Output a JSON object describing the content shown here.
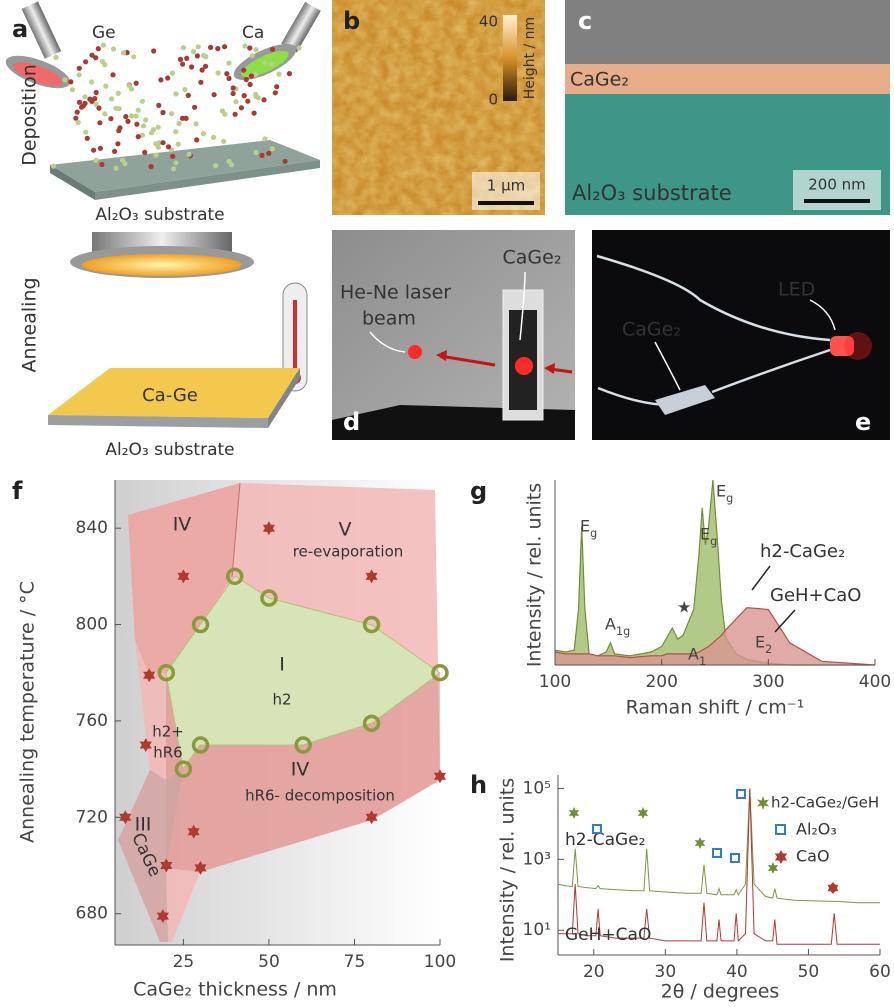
{
  "panels": {
    "a": {
      "label": "a",
      "source_left": "Ge",
      "source_right": "Ca",
      "step_top": "Deposition",
      "substrate_top": "Al₂O₃ substrate",
      "step_bottom": "Annealing",
      "film": "Ca-Ge",
      "substrate_bottom": "Al₂O₃ substrate"
    },
    "b": {
      "label": "b",
      "scale_max": "40",
      "scale_min": "0",
      "scale_title": "Height / nm",
      "scale_bar": "1 µm"
    },
    "c": {
      "label": "c",
      "layer": "CaGe₂",
      "substrate": "Al₂O₃ substrate",
      "scale_bar": "200 nm"
    },
    "d": {
      "label": "d",
      "beam": [
        "He-Ne laser",
        "beam"
      ],
      "sample": "CaGe₂"
    },
    "e": {
      "label": "e",
      "led": "LED",
      "sample": "CaGe₂"
    }
  },
  "chart_data": [
    {
      "type": "scatter",
      "label": "f",
      "x_label": "CaGe₂ thickness / nm",
      "y_label": "Annealing temperature / °C",
      "xlim": [
        5,
        100
      ],
      "ylim": [
        667,
        860
      ],
      "xticks": [
        25,
        50,
        75,
        100
      ],
      "yticks": [
        680,
        720,
        760,
        800,
        840
      ],
      "regions": [
        "IV",
        "V",
        "re-evaporation",
        "I",
        "h2",
        "h2+",
        "hR6",
        "IV",
        "hR6- decomposition",
        "III",
        "CaGe"
      ],
      "series": [
        {
          "marker": "circle",
          "color": "#8a9a3a",
          "x": [
            20,
            30,
            40,
            50,
            80,
            100,
            80,
            60,
            30,
            25
          ],
          "values": [
            780,
            800,
            820,
            811,
            800,
            780,
            759,
            750,
            750,
            740
          ]
        },
        {
          "marker": "star",
          "color": "#b03a30",
          "x": [
            50,
            25,
            80,
            15,
            14,
            8,
            28,
            20,
            30,
            80,
            100,
            19
          ],
          "values": [
            840,
            820,
            820,
            779,
            750,
            720,
            714,
            700,
            699,
            720,
            737,
            679
          ]
        }
      ]
    },
    {
      "type": "area",
      "label": "g",
      "x_label": "Raman shift / cm⁻¹",
      "y_label": "Intensity / rel. units",
      "xlim": [
        100,
        400
      ],
      "ylim": [
        0,
        1
      ],
      "xticks": [
        100,
        200,
        300,
        400
      ],
      "annotations": [
        "Eg",
        "A1g",
        "★",
        "Eg",
        "Eg",
        "E2",
        "A1"
      ],
      "x": [
        100,
        110,
        118,
        122,
        125,
        128,
        132,
        140,
        148,
        152,
        156,
        170,
        190,
        200,
        205,
        210,
        215,
        220,
        230,
        235,
        238,
        241,
        244,
        248,
        252,
        256,
        260,
        270,
        280,
        300,
        320,
        350,
        400
      ],
      "series": [
        {
          "name": "h2-CaGe₂",
          "color": "#6f8f35",
          "values": [
            0.08,
            0.07,
            0.08,
            0.3,
            0.75,
            0.3,
            0.06,
            0.05,
            0.07,
            0.12,
            0.06,
            0.05,
            0.07,
            0.1,
            0.15,
            0.2,
            0.14,
            0.16,
            0.3,
            0.6,
            0.85,
            0.65,
            0.75,
            1.0,
            0.7,
            0.35,
            0.15,
            0.06,
            0.03,
            0.01,
            0,
            0,
            0
          ]
        },
        {
          "name": "GeH+CaO",
          "color": "#b8504a",
          "values": [
            0.07,
            0.06,
            0.06,
            0.06,
            0.06,
            0.06,
            0.06,
            0.05,
            0.05,
            0.05,
            0.05,
            0.04,
            0.05,
            0.05,
            0.06,
            0.06,
            0.06,
            0.06,
            0.06,
            0.07,
            0.08,
            0.09,
            0.1,
            0.12,
            0.14,
            0.16,
            0.19,
            0.25,
            0.31,
            0.3,
            0.12,
            0.02,
            0
          ]
        }
      ]
    },
    {
      "type": "line",
      "label": "h",
      "x_label": "2θ / degrees",
      "y_label": "Intensity / rel. units",
      "log_y": true,
      "xlim": [
        15,
        60
      ],
      "ylim": [
        2,
        240000
      ],
      "xticks": [
        20,
        30,
        40,
        50,
        60
      ],
      "yticks": [
        {
          "value": 10,
          "label": "10¹"
        },
        {
          "value": 1000,
          "label": "10³"
        },
        {
          "value": 100000,
          "label": "10⁵"
        }
      ],
      "markers": [
        {
          "name": "h2-CaGe₂/GeH",
          "color": "#6f8f35"
        },
        {
          "name": "Al₂O₃",
          "color": "#2f7fc1"
        },
        {
          "name": "CaO",
          "color": "#b03a30"
        }
      ],
      "x": [
        15,
        16,
        17,
        17.4,
        17.8,
        19,
        20.3,
        20.6,
        20.9,
        23,
        26,
        27,
        27.4,
        27.8,
        30,
        33,
        35,
        35.4,
        35.8,
        37.2,
        37.5,
        37.8,
        39.6,
        39.9,
        40.2,
        41.2,
        41.8,
        42.4,
        44,
        45,
        45.3,
        45.6,
        48,
        53.2,
        53.6,
        54,
        57,
        60
      ],
      "series": [
        {
          "name": "h2-CaGe₂",
          "color": "#7a9a40",
          "values": [
            200,
            180,
            170,
            2000,
            170,
            160,
            150,
            180,
            150,
            140,
            130,
            130,
            2000,
            130,
            120,
            110,
            110,
            700,
            110,
            100,
            150,
            100,
            100,
            140,
            100,
            200,
            100000,
            200,
            90,
            80,
            150,
            80,
            70,
            65,
            65,
            65,
            60,
            60
          ]
        },
        {
          "name": "GeH+CaO",
          "color": "#b03a30",
          "values": [
            8,
            8,
            8,
            200,
            8,
            7,
            7,
            40,
            7,
            6,
            6,
            6,
            40,
            6,
            5,
            5,
            5,
            60,
            5,
            5,
            20,
            5,
            5,
            30,
            5,
            8,
            100000,
            8,
            5,
            5,
            20,
            4,
            4,
            4,
            30,
            4,
            4,
            4
          ]
        }
      ]
    }
  ]
}
